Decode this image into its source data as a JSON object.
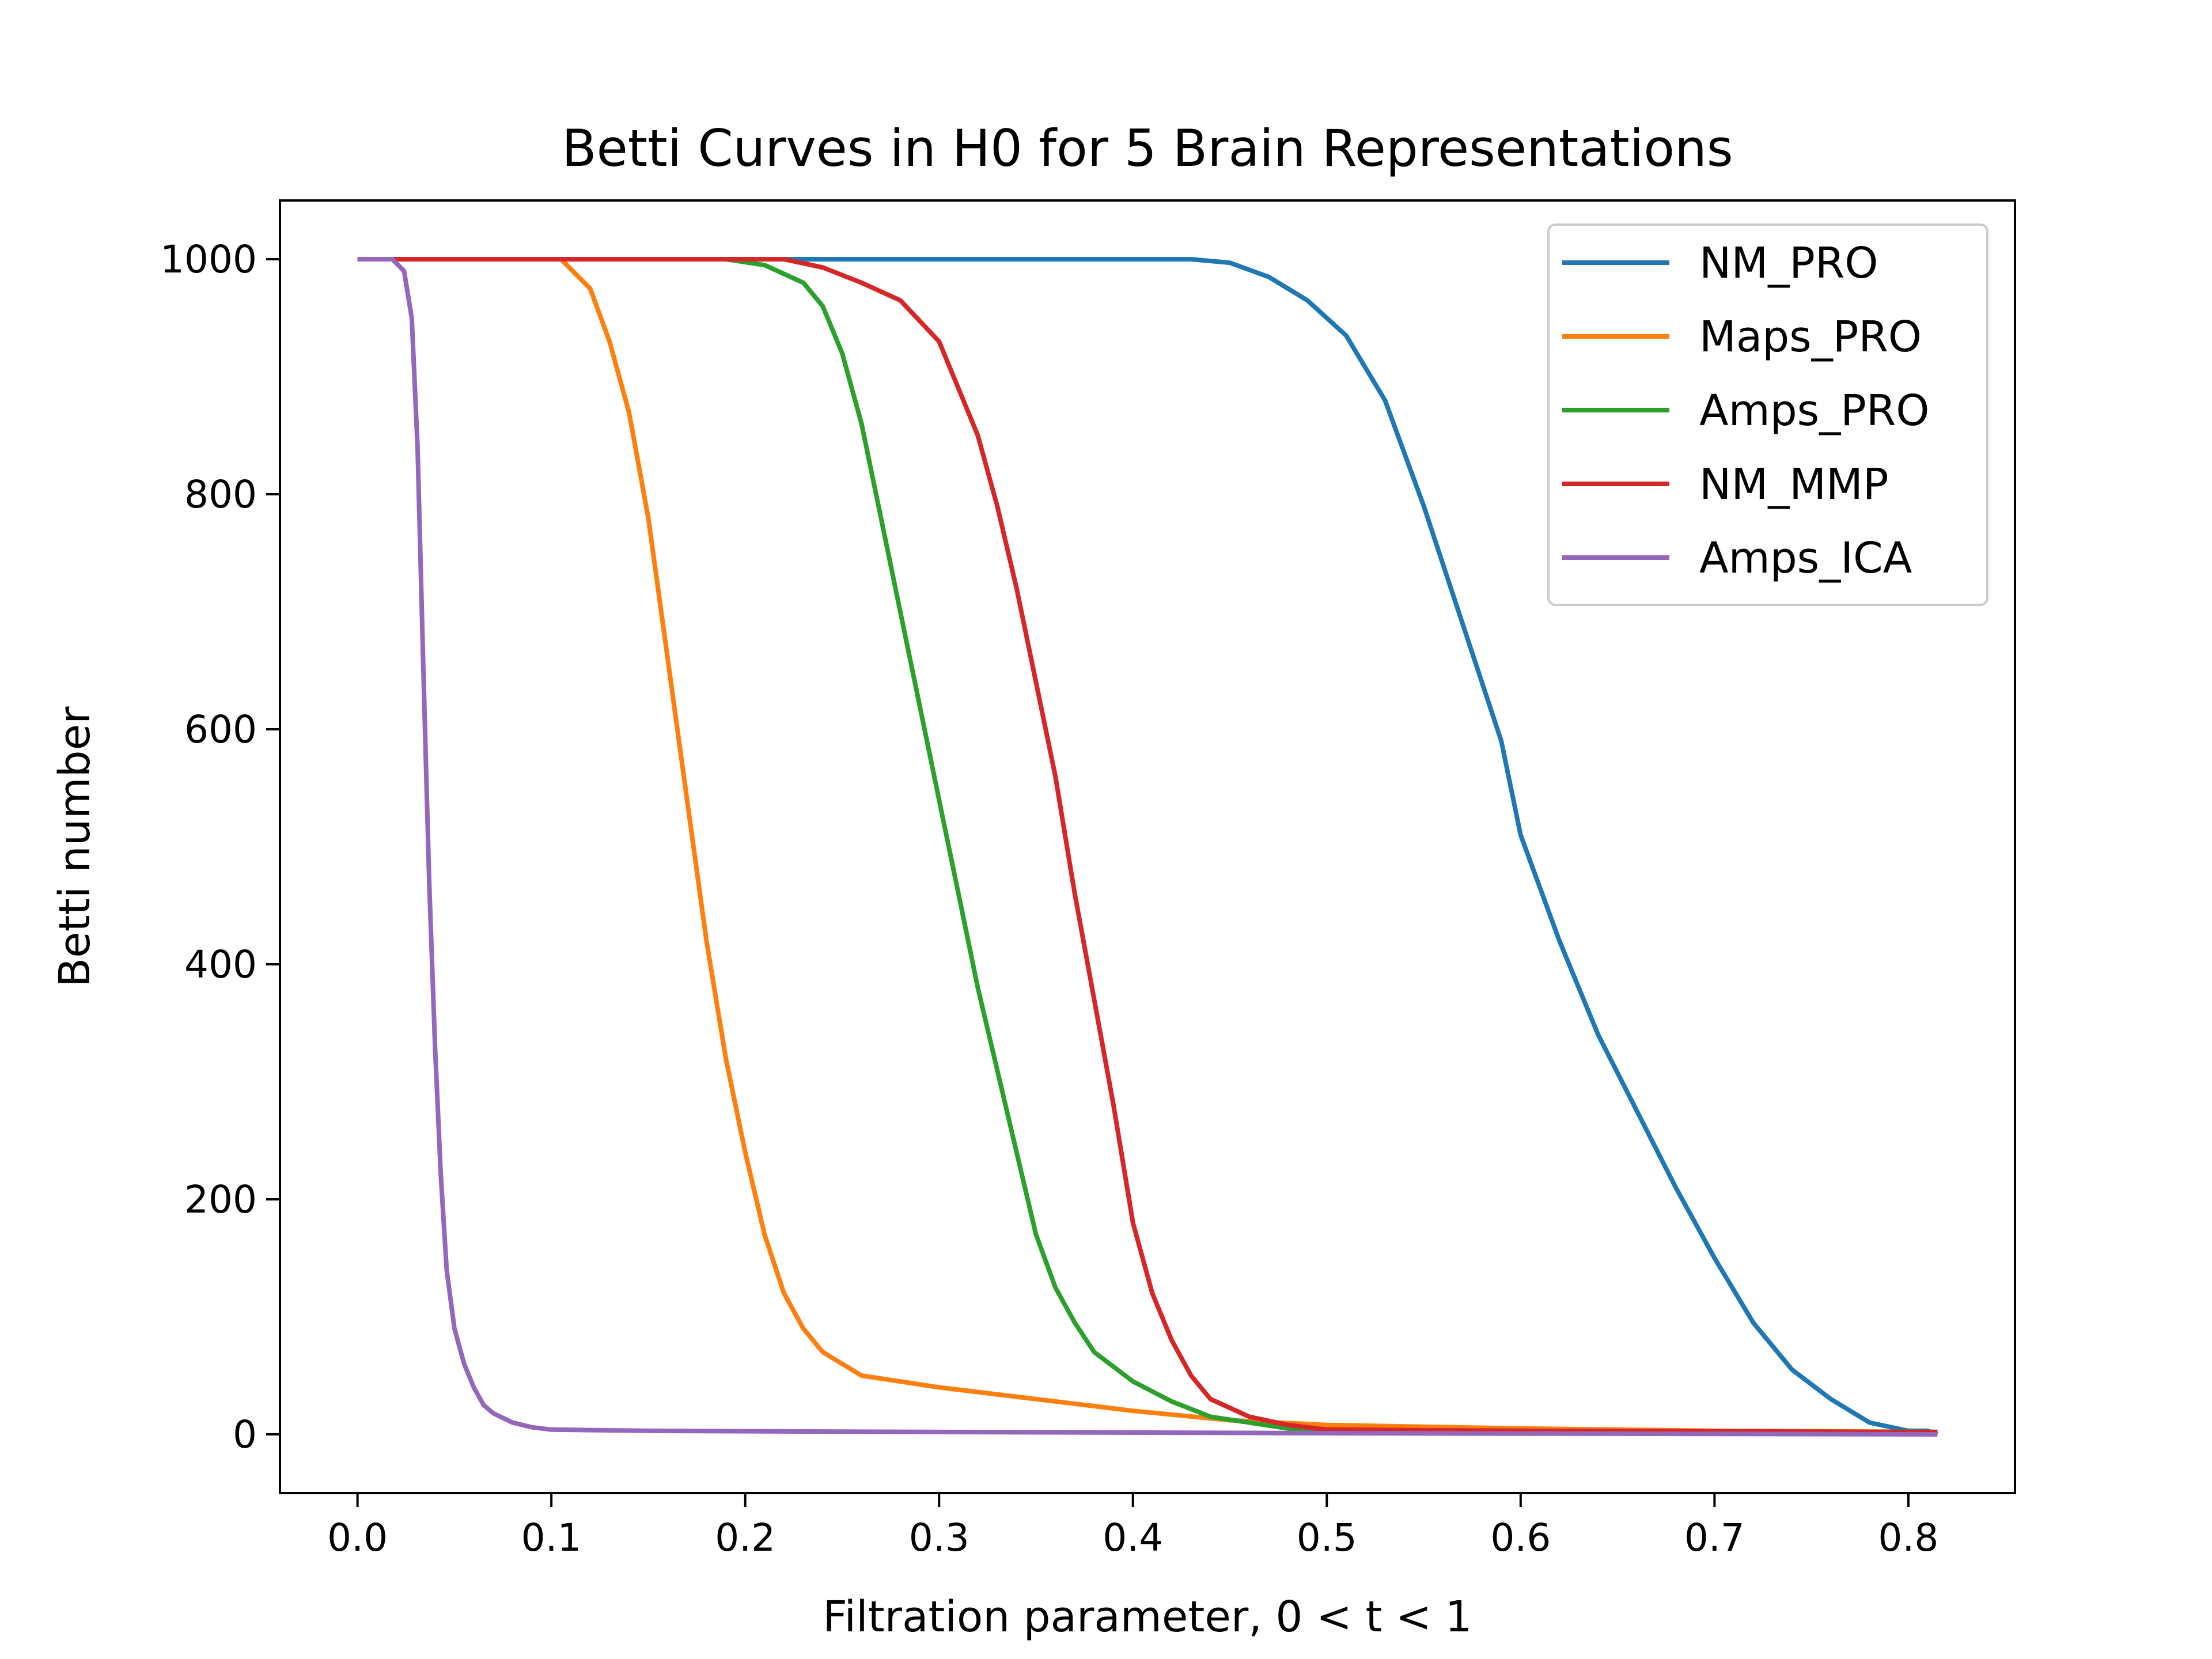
{
  "chart_data": {
    "type": "line",
    "title": "Betti Curves in H0 for 5 Brain Representations",
    "xlabel": "Filtration parameter, 0 < t < 1",
    "ylabel": "Betti number",
    "xlim": [
      -0.04,
      0.855
    ],
    "ylim": [
      -50,
      1050
    ],
    "xticks": [
      "0.0",
      "0.1",
      "0.2",
      "0.3",
      "0.4",
      "0.5",
      "0.6",
      "0.7",
      "0.8"
    ],
    "yticks": [
      "0",
      "200",
      "400",
      "600",
      "800",
      "1000"
    ],
    "grid": false,
    "legend_position": "top-right",
    "series": [
      {
        "name": "NM_PRO",
        "color": "#1f77b4",
        "points": [
          [
            0.0,
            1000
          ],
          [
            0.43,
            1000
          ],
          [
            0.45,
            997
          ],
          [
            0.47,
            985
          ],
          [
            0.49,
            965
          ],
          [
            0.51,
            935
          ],
          [
            0.53,
            880
          ],
          [
            0.55,
            790
          ],
          [
            0.57,
            690
          ],
          [
            0.59,
            590
          ],
          [
            0.6,
            510
          ],
          [
            0.62,
            420
          ],
          [
            0.64,
            340
          ],
          [
            0.66,
            275
          ],
          [
            0.68,
            210
          ],
          [
            0.7,
            150
          ],
          [
            0.72,
            95
          ],
          [
            0.74,
            55
          ],
          [
            0.76,
            30
          ],
          [
            0.78,
            10
          ],
          [
            0.8,
            3
          ],
          [
            0.81,
            3
          ],
          [
            0.815,
            0
          ]
        ]
      },
      {
        "name": "Maps_PRO",
        "color": "#ff7f0e",
        "points": [
          [
            0.0,
            1000
          ],
          [
            0.105,
            1000
          ],
          [
            0.12,
            975
          ],
          [
            0.13,
            930
          ],
          [
            0.14,
            870
          ],
          [
            0.15,
            780
          ],
          [
            0.16,
            660
          ],
          [
            0.17,
            540
          ],
          [
            0.18,
            420
          ],
          [
            0.19,
            320
          ],
          [
            0.2,
            240
          ],
          [
            0.21,
            170
          ],
          [
            0.22,
            120
          ],
          [
            0.23,
            90
          ],
          [
            0.24,
            70
          ],
          [
            0.26,
            50
          ],
          [
            0.3,
            40
          ],
          [
            0.35,
            30
          ],
          [
            0.4,
            20
          ],
          [
            0.45,
            12
          ],
          [
            0.5,
            8
          ],
          [
            0.6,
            5
          ],
          [
            0.7,
            3
          ],
          [
            0.815,
            2
          ]
        ]
      },
      {
        "name": "Amps_PRO",
        "color": "#2ca02c",
        "points": [
          [
            0.0,
            1000
          ],
          [
            0.19,
            1000
          ],
          [
            0.21,
            995
          ],
          [
            0.23,
            980
          ],
          [
            0.24,
            960
          ],
          [
            0.25,
            920
          ],
          [
            0.26,
            860
          ],
          [
            0.27,
            780
          ],
          [
            0.28,
            700
          ],
          [
            0.29,
            620
          ],
          [
            0.3,
            540
          ],
          [
            0.31,
            460
          ],
          [
            0.32,
            380
          ],
          [
            0.33,
            310
          ],
          [
            0.34,
            240
          ],
          [
            0.35,
            170
          ],
          [
            0.36,
            125
          ],
          [
            0.37,
            95
          ],
          [
            0.38,
            70
          ],
          [
            0.4,
            45
          ],
          [
            0.42,
            28
          ],
          [
            0.44,
            15
          ],
          [
            0.46,
            10
          ],
          [
            0.48,
            5
          ],
          [
            0.5,
            3
          ],
          [
            0.815,
            2
          ]
        ]
      },
      {
        "name": "NM_MMP",
        "color": "#d62728",
        "points": [
          [
            0.0,
            1000
          ],
          [
            0.22,
            1000
          ],
          [
            0.24,
            993
          ],
          [
            0.26,
            980
          ],
          [
            0.28,
            965
          ],
          [
            0.3,
            930
          ],
          [
            0.31,
            890
          ],
          [
            0.32,
            850
          ],
          [
            0.33,
            790
          ],
          [
            0.34,
            720
          ],
          [
            0.35,
            640
          ],
          [
            0.36,
            560
          ],
          [
            0.37,
            460
          ],
          [
            0.38,
            370
          ],
          [
            0.39,
            280
          ],
          [
            0.4,
            180
          ],
          [
            0.41,
            120
          ],
          [
            0.42,
            80
          ],
          [
            0.43,
            50
          ],
          [
            0.44,
            30
          ],
          [
            0.46,
            15
          ],
          [
            0.48,
            8
          ],
          [
            0.5,
            4
          ],
          [
            0.6,
            3
          ],
          [
            0.815,
            2
          ]
        ]
      },
      {
        "name": "Amps_ICA",
        "color": "#9467bd",
        "points": [
          [
            0.0,
            1000
          ],
          [
            0.018,
            1000
          ],
          [
            0.024,
            990
          ],
          [
            0.028,
            950
          ],
          [
            0.031,
            840
          ],
          [
            0.034,
            650
          ],
          [
            0.037,
            470
          ],
          [
            0.04,
            330
          ],
          [
            0.043,
            220
          ],
          [
            0.046,
            140
          ],
          [
            0.05,
            90
          ],
          [
            0.055,
            60
          ],
          [
            0.06,
            40
          ],
          [
            0.065,
            25
          ],
          [
            0.07,
            18
          ],
          [
            0.08,
            10
          ],
          [
            0.09,
            6
          ],
          [
            0.1,
            4
          ],
          [
            0.15,
            3
          ],
          [
            0.3,
            2
          ],
          [
            0.5,
            1
          ],
          [
            0.815,
            0
          ]
        ]
      }
    ]
  }
}
